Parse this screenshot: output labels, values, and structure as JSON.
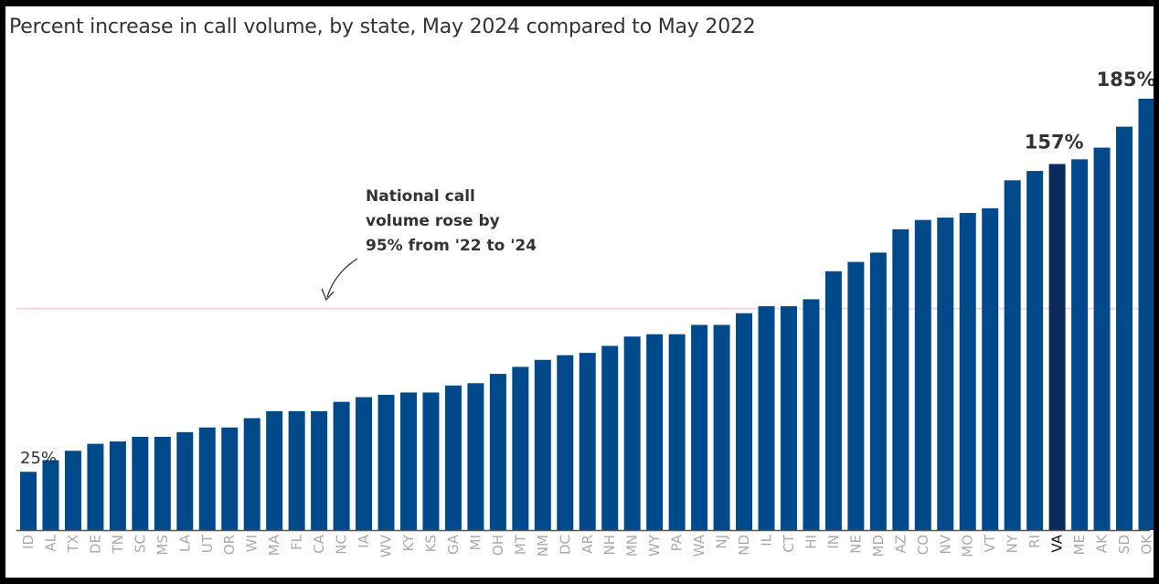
{
  "chart_data": {
    "type": "bar",
    "title": "Percent increase in call volume, by state, May 2024 compared to May 2022",
    "xlabel": "",
    "ylabel": "",
    "categories": [
      "ID",
      "AL",
      "TX",
      "DE",
      "TN",
      "SC",
      "MS",
      "LA",
      "UT",
      "OR",
      "WI",
      "MA",
      "FL",
      "CA",
      "NC",
      "IA",
      "WV",
      "KY",
      "KS",
      "GA",
      "MI",
      "OH",
      "MT",
      "NM",
      "DC",
      "AR",
      "NH",
      "MN",
      "WY",
      "PA",
      "WA",
      "NJ",
      "ND",
      "IL",
      "CT",
      "HI",
      "IN",
      "NE",
      "MD",
      "AZ",
      "CO",
      "NV",
      "MO",
      "VT",
      "NY",
      "RI",
      "VA",
      "ME",
      "AK",
      "SD",
      "OK"
    ],
    "values": [
      25,
      30,
      34,
      37,
      38,
      40,
      40,
      42,
      44,
      44,
      48,
      51,
      51,
      51,
      55,
      57,
      58,
      59,
      59,
      62,
      63,
      67,
      70,
      73,
      75,
      76,
      79,
      83,
      84,
      84,
      88,
      88,
      93,
      96,
      96,
      99,
      111,
      115,
      119,
      129,
      133,
      134,
      136,
      138,
      150,
      154,
      157,
      159,
      164,
      173,
      185
    ],
    "ylim": [
      0,
      185
    ],
    "grid": false,
    "highlight_category": "VA",
    "reference_line": {
      "value": 95
    },
    "data_labels": [
      {
        "category": "ID",
        "text": "25%"
      },
      {
        "category": "VA",
        "text": "157%"
      },
      {
        "category": "OK",
        "text": "185%"
      }
    ],
    "annotation": {
      "lines": [
        "National call",
        "volume rose by",
        "95% from '22 to '24"
      ]
    },
    "colors": {
      "bar": "#004a8c",
      "highlight_bar": "#0b2a5c",
      "reference_line": "#f5d6de",
      "axis": "#555555",
      "tick_label": "#aaaaaa",
      "highlight_tick_label": "#111111"
    }
  }
}
